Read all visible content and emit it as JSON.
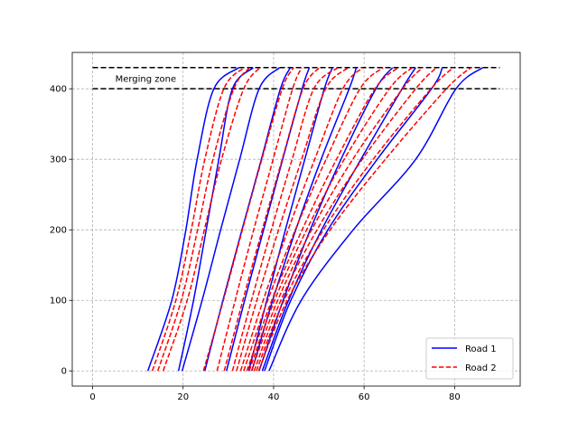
{
  "chart_data": {
    "type": "line",
    "title": "",
    "xlabel": "",
    "ylabel": "",
    "xlim": [
      -4.5,
      94.5
    ],
    "ylim": [
      -21.5,
      451.5
    ],
    "x_ticks": [
      0,
      20,
      40,
      60,
      80
    ],
    "y_ticks": [
      0,
      100,
      200,
      300,
      400
    ],
    "x_tick_labels": [
      "0",
      "20",
      "40",
      "60",
      "80"
    ],
    "y_tick_labels": [
      "0",
      "100",
      "200",
      "300",
      "400"
    ],
    "grid": true,
    "legend_placement": "lower-right",
    "annotation": {
      "text": "Merging zone",
      "x": 5,
      "y": 415
    },
    "reference_lines": [
      {
        "y": 400,
        "x_range": [
          0,
          90
        ],
        "color": "#000000",
        "style": "dashed"
      },
      {
        "y": 430,
        "x_range": [
          0,
          90
        ],
        "color": "#000000",
        "style": "dashed"
      }
    ],
    "series": [
      {
        "name": "Road 1",
        "color": "#0000ff",
        "style": "solid",
        "trajectories": [
          [
            [
              12.2,
              0
            ],
            [
              17.5,
              100
            ],
            [
              20.6,
              200
            ],
            [
              23.1,
              300
            ],
            [
              26.8,
              400
            ],
            [
              32.3,
              430
            ]
          ],
          [
            [
              19,
              0
            ],
            [
              22.3,
              100
            ],
            [
              25.1,
              200
            ],
            [
              27.9,
              300
            ],
            [
              30.9,
              400
            ],
            [
              35.5,
              430
            ]
          ],
          [
            [
              19.8,
              0
            ],
            [
              24.2,
              100
            ],
            [
              28.3,
              200
            ],
            [
              32.5,
              300
            ],
            [
              36.8,
              400
            ],
            [
              41.3,
              430
            ]
          ],
          [
            [
              24.8,
              0
            ],
            [
              28.8,
              100
            ],
            [
              33,
              200
            ],
            [
              37.3,
              300
            ],
            [
              41.5,
              400
            ],
            [
              43.7,
              430
            ]
          ],
          [
            [
              29.6,
              0
            ],
            [
              33.6,
              100
            ],
            [
              37.8,
              200
            ],
            [
              42,
              300
            ],
            [
              46.3,
              400
            ],
            [
              47.9,
              430
            ]
          ],
          [
            [
              34.5,
              0
            ],
            [
              38.5,
              100
            ],
            [
              42.6,
              200
            ],
            [
              46.9,
              300
            ],
            [
              51.2,
              400
            ],
            [
              53,
              430
            ]
          ],
          [
            [
              35.2,
              0
            ],
            [
              39.8,
              100
            ],
            [
              44.9,
              200
            ],
            [
              50.5,
              300
            ],
            [
              56.7,
              400
            ],
            [
              58.3,
              430
            ]
          ],
          [
            [
              36.8,
              0
            ],
            [
              42.1,
              100
            ],
            [
              48.1,
              200
            ],
            [
              54.9,
              300
            ],
            [
              62.6,
              400
            ],
            [
              66.3,
              430
            ]
          ],
          [
            [
              37.5,
              0
            ],
            [
              43.3,
              100
            ],
            [
              50.6,
              200
            ],
            [
              59.3,
              300
            ],
            [
              68.4,
              400
            ],
            [
              71.4,
              430
            ]
          ],
          [
            [
              38,
              0
            ],
            [
              43.8,
              100
            ],
            [
              52,
              200
            ],
            [
              62.9,
              300
            ],
            [
              74.9,
              400
            ],
            [
              77.3,
              430
            ]
          ],
          [
            [
              39,
              0
            ],
            [
              46.1,
              100
            ],
            [
              57.6,
              200
            ],
            [
              71.4,
              300
            ],
            [
              80.3,
              400
            ],
            [
              86.2,
              430
            ]
          ]
        ]
      },
      {
        "name": "Road 2",
        "color": "#ff0000",
        "style": "dashed",
        "trajectories": [
          [
            [
              13.2,
              0
            ],
            [
              18.4,
              100
            ],
            [
              21.8,
              200
            ],
            [
              24.8,
              300
            ],
            [
              29,
              400
            ],
            [
              33.5,
              430
            ]
          ],
          [
            [
              14.4,
              0
            ],
            [
              19.6,
              100
            ],
            [
              23.2,
              200
            ],
            [
              26.6,
              300
            ],
            [
              31.2,
              400
            ],
            [
              34.7,
              430
            ]
          ],
          [
            [
              15.6,
              0
            ],
            [
              20.9,
              100
            ],
            [
              24.7,
              200
            ],
            [
              28.5,
              300
            ],
            [
              33.4,
              400
            ],
            [
              37,
              430
            ]
          ],
          [
            [
              24.5,
              0
            ],
            [
              28.9,
              100
            ],
            [
              33.1,
              200
            ],
            [
              37.4,
              300
            ],
            [
              41.9,
              400
            ],
            [
              44.4,
              430
            ]
          ],
          [
            [
              27.5,
              0
            ],
            [
              31.5,
              100
            ],
            [
              35.6,
              200
            ],
            [
              39.9,
              300
            ],
            [
              44.2,
              400
            ],
            [
              46.2,
              430
            ]
          ],
          [
            [
              29.1,
              0
            ],
            [
              33.2,
              100
            ],
            [
              37.5,
              200
            ],
            [
              41.9,
              300
            ],
            [
              46.5,
              400
            ],
            [
              50.1,
              430
            ]
          ],
          [
            [
              30.9,
              0
            ],
            [
              35.1,
              100
            ],
            [
              39.5,
              200
            ],
            [
              44.1,
              300
            ],
            [
              48.9,
              400
            ],
            [
              54.2,
              430
            ]
          ],
          [
            [
              31.8,
              0
            ],
            [
              36.3,
              100
            ],
            [
              41.1,
              200
            ],
            [
              46.2,
              300
            ],
            [
              51.5,
              400
            ],
            [
              56.5,
              430
            ]
          ],
          [
            [
              32.7,
              0
            ],
            [
              37.7,
              100
            ],
            [
              43.2,
              200
            ],
            [
              49.1,
              300
            ],
            [
              55.3,
              400
            ],
            [
              59.7,
              430
            ]
          ],
          [
            [
              33.4,
              0
            ],
            [
              38.7,
              100
            ],
            [
              44.8,
              200
            ],
            [
              51.6,
              300
            ],
            [
              59.1,
              400
            ],
            [
              64.2,
              430
            ]
          ],
          [
            [
              34.1,
              0
            ],
            [
              39.6,
              100
            ],
            [
              46.3,
              200
            ],
            [
              53.9,
              300
            ],
            [
              62.4,
              400
            ],
            [
              67.5,
              430
            ]
          ],
          [
            [
              34.6,
              0
            ],
            [
              40.2,
              100
            ],
            [
              47.3,
              200
            ],
            [
              55.6,
              300
            ],
            [
              65.6,
              400
            ],
            [
              70.6,
              430
            ]
          ],
          [
            [
              35.1,
              0
            ],
            [
              40.9,
              100
            ],
            [
              48.4,
              200
            ],
            [
              57.5,
              300
            ],
            [
              68.5,
              400
            ],
            [
              72.9,
              430
            ]
          ],
          [
            [
              35.7,
              0
            ],
            [
              41.6,
              100
            ],
            [
              49.6,
              200
            ],
            [
              59.6,
              300
            ],
            [
              71.4,
              400
            ],
            [
              76,
              430
            ]
          ],
          [
            [
              36.2,
              0
            ],
            [
              42.3,
              100
            ],
            [
              51,
              200
            ],
            [
              62,
              300
            ],
            [
              74.8,
              400
            ],
            [
              79.7,
              430
            ]
          ],
          [
            [
              36.7,
              0
            ],
            [
              43,
              100
            ],
            [
              52.5,
              200
            ],
            [
              64.7,
              300
            ],
            [
              78.2,
              400
            ],
            [
              83.6,
              430
            ]
          ]
        ]
      }
    ]
  }
}
